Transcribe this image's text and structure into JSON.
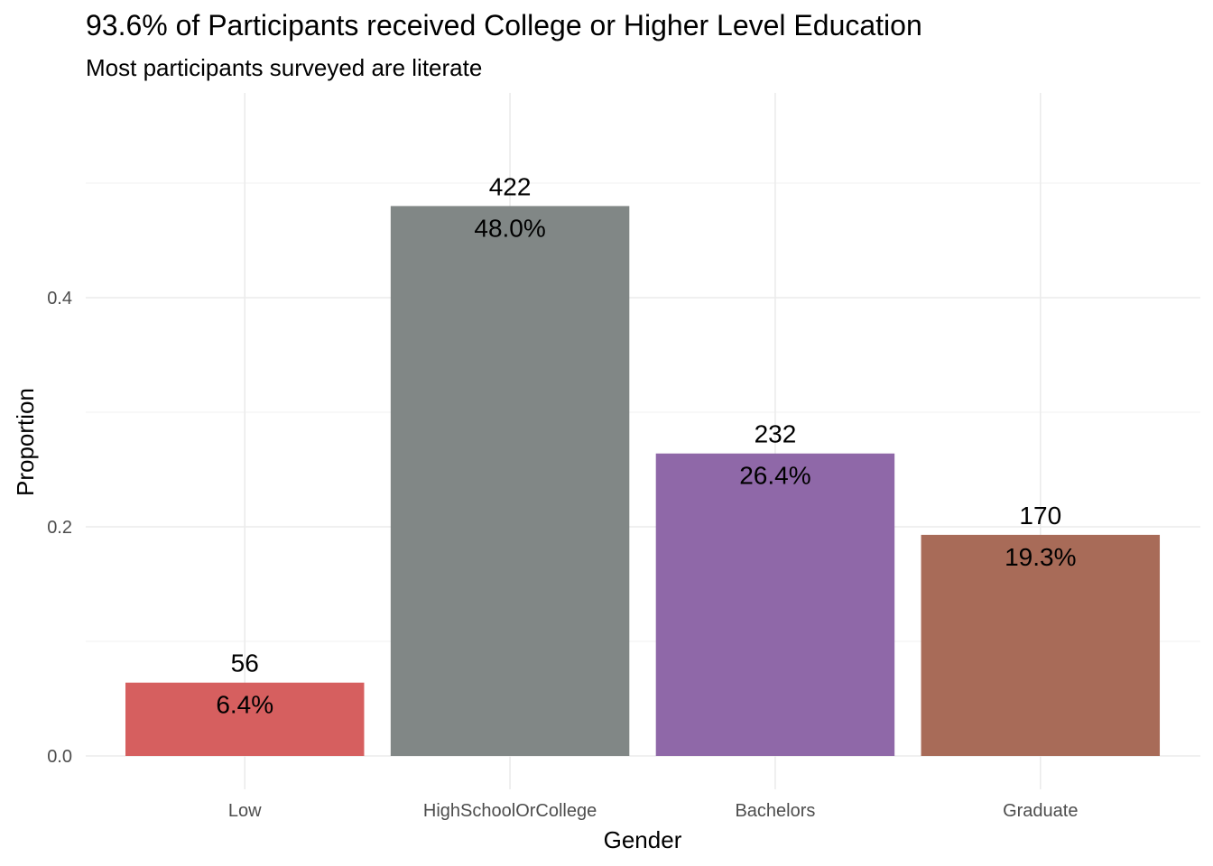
{
  "chart_data": {
    "type": "bar",
    "title": "93.6% of Participants received College or Higher Level Education",
    "subtitle": "Most participants surveyed are literate",
    "xlabel": "Gender",
    "ylabel": "Proportion",
    "categories": [
      "Low",
      "HighSchoolOrCollege",
      "Bachelors",
      "Graduate"
    ],
    "values": [
      0.064,
      0.48,
      0.264,
      0.193
    ],
    "count_labels": [
      "56",
      "422",
      "232",
      "170"
    ],
    "percent_labels": [
      "6.4%",
      "48.0%",
      "26.4%",
      "19.3%"
    ],
    "colors": [
      "#D65F5F",
      "#818786",
      "#8F68A8",
      "#A86B58"
    ],
    "ylim": [
      0,
      0.55
    ],
    "yticks": [
      0.0,
      0.2,
      0.4
    ],
    "ytick_labels": [
      "0.0",
      "0.2",
      "0.4"
    ],
    "grid": true,
    "legend": "none"
  }
}
